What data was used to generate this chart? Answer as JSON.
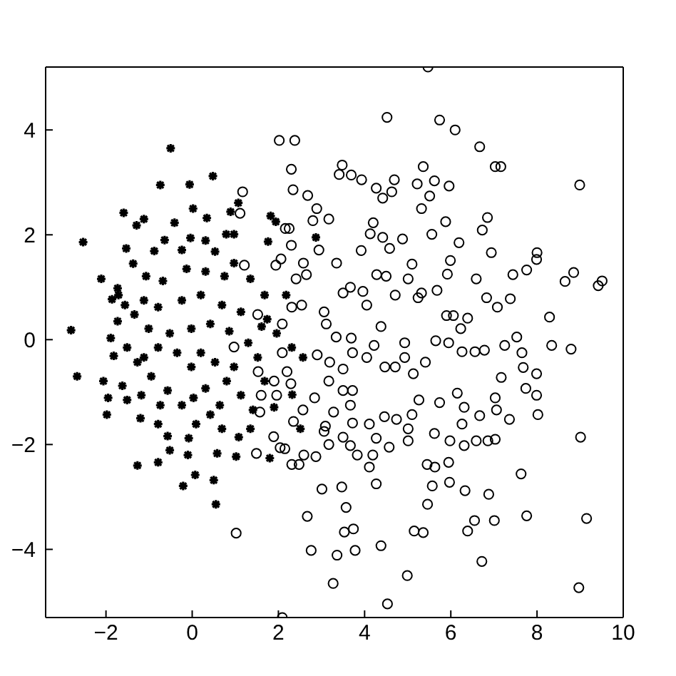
{
  "chart_data": {
    "type": "scatter",
    "xlim": [
      -3.4,
      10
    ],
    "ylim": [
      -5.3,
      5.2
    ],
    "xticks": [
      -2,
      0,
      2,
      4,
      6,
      8,
      10
    ],
    "yticks": [
      -4,
      -2,
      0,
      2,
      4
    ],
    "series": [
      {
        "color": "#000000",
        "marker": "cross",
        "x": [
          -2.53,
          -2.11,
          -1.73,
          -1.59,
          -1.29,
          -1.12,
          -1.53,
          -0.74,
          -0.5,
          -0.06,
          0.02,
          -0.41,
          0.34,
          0.48,
          0.89,
          0.97,
          0.79,
          1.07,
          1.82,
          1.94,
          1.76,
          2.87,
          -0.64,
          -0.04,
          0.31,
          -0.88,
          -1.37,
          -0.24,
          0.53,
          0.97,
          -1.07,
          -0.68,
          -0.13,
          0.31,
          0.75,
          1.35,
          -1.86,
          -1.12,
          -1.56,
          1.68,
          -2.81,
          -2.67,
          -2.06,
          -1.95,
          -1.98,
          -1.2,
          -1.73,
          -1.51,
          -1.82,
          -1.62,
          -1.51,
          -1.18,
          -0.79,
          -0.57,
          -0.79,
          -0.52,
          -1.27,
          -0.21,
          0.07,
          -0.1,
          -0.08,
          0.09,
          0.5,
          0.55,
          0.58,
          1.02,
          0.69,
          1.08,
          1.35,
          1.41,
          1.8,
          2.51,
          2.32,
          2.57,
          1.9,
          1.68,
          1.52,
          1.13,
          0.8,
          0.42,
          0.31,
          -0.24,
          -0.57,
          -0.95,
          -1.12,
          -0.79,
          -0.35,
          -0.02,
          0.53,
          0.97,
          1.3,
          0.86,
          0.42,
          -0.02,
          -0.52,
          -1.01,
          -1.34,
          -0.79,
          -0.24,
          0.2,
          0.69,
          1.13,
          1.61,
          1.74,
          1.96,
          2.18,
          2.31,
          -1.71,
          -1.89,
          -1.27,
          0.2,
          0.64,
          0.03,
          -0.74
        ],
        "values": [
          1.86,
          1.16,
          0.98,
          2.42,
          2.18,
          2.3,
          1.74,
          2.95,
          3.65,
          2.96,
          2.5,
          2.23,
          2.32,
          3.12,
          2.44,
          2.01,
          2.01,
          2.61,
          2.36,
          2.25,
          1.87,
          1.95,
          1.9,
          1.94,
          1.89,
          1.69,
          1.45,
          1.71,
          1.68,
          1.46,
          1.21,
          1.12,
          1.35,
          1.3,
          1.21,
          1.16,
          0.77,
          0.75,
          0.66,
          0.85,
          0.18,
          -0.7,
          -0.79,
          -1.11,
          -1.43,
          -1.5,
          0.35,
          -0.15,
          -0.31,
          -0.88,
          -1.15,
          -1.06,
          -1.61,
          -1.84,
          -2.34,
          -2.11,
          -2.4,
          -2.79,
          -2.58,
          -2.2,
          -1.88,
          -1.61,
          -2.68,
          -3.14,
          -2.17,
          -2.23,
          -1.7,
          -1.86,
          -1.7,
          -1.34,
          -2.26,
          -1.7,
          -1.05,
          -0.34,
          -1.29,
          -0.79,
          -0.34,
          -1.06,
          -0.79,
          -1.43,
          -0.93,
          -1.25,
          -0.97,
          -0.7,
          -0.34,
          -0.15,
          -0.25,
          -0.52,
          -0.43,
          -0.52,
          -0.06,
          0.16,
          0.3,
          0.21,
          0.12,
          0.21,
          0.48,
          0.62,
          0.75,
          0.85,
          0.66,
          0.53,
          0.25,
          0.39,
          0.12,
          0.85,
          -0.15,
          0.85,
          0.03,
          -0.43,
          -0.25,
          -1.25,
          -1.11,
          -1.25
        ]
      },
      {
        "color": "#000000",
        "marker": "circle",
        "x": [
          5.47,
          4.52,
          5.74,
          6.1,
          6.67,
          7.03,
          7.16,
          8.99,
          2.02,
          2.38,
          2.3,
          2.34,
          3.48,
          3.41,
          3.69,
          3.93,
          1.17,
          1.11,
          2.68,
          2.89,
          2.8,
          3.17,
          4.27,
          4.69,
          4.63,
          4.42,
          5.36,
          5.22,
          5.62,
          5.96,
          5.51,
          5.32,
          5.88,
          6.85,
          6.73,
          6.19,
          5.56,
          4.2,
          4.13,
          4.42,
          2.16,
          2.25,
          2.3,
          1.94,
          2.06,
          1.21,
          2.58,
          2.94,
          3.35,
          3.92,
          4.58,
          4.88,
          6.94,
          8.0,
          7.76,
          7.99,
          5.99,
          5.92,
          5.1,
          5.01,
          4.28,
          4.5,
          7.44,
          6.59,
          8.85,
          8.65,
          9.42,
          9.51,
          2.41,
          2.65,
          5.32,
          3.67,
          3.5,
          8.29,
          8.34,
          8.79,
          7.65,
          7.68,
          7.74,
          7.99,
          7.99,
          8.02,
          9.01,
          9.15,
          8.97,
          7.63,
          7.76,
          6.72,
          7.01,
          6.88,
          6.55,
          6.39,
          6.33,
          5.97,
          5.95,
          5.57,
          5.45,
          5.63,
          5.46,
          5.36,
          5.15,
          4.99,
          4.53,
          4.38,
          3.78,
          3.74,
          3.53,
          3.36,
          3.27,
          2.76,
          2.67,
          3.47,
          3.57,
          3.01,
          2.09,
          1.02,
          4.27,
          4.11,
          3.83,
          4.19,
          3.5,
          3.67,
          2.31,
          2.48,
          2.87,
          2.59,
          1.49,
          2.04,
          2.15,
          1.89,
          3.17,
          3.06,
          5.98,
          6.31,
          6.59,
          6.86,
          7.03,
          6.67,
          7.06,
          7.36,
          7.03,
          7.17,
          6.26,
          6.31,
          6.15,
          5.62,
          5.74,
          5.01,
          5.01,
          5.26,
          5.1,
          4.57,
          4.46,
          4.74,
          4.11,
          4.27,
          6.78,
          7.25,
          7.53,
          6.83,
          7.08,
          7.38,
          5.9,
          6.06,
          6.39,
          6.56,
          6.26,
          5.95,
          5.65,
          5.41,
          5.13,
          4.93,
          4.71,
          4.47,
          4.22,
          4.38,
          4.05,
          3.72,
          3.72,
          3.5,
          3.67,
          3.72,
          3.28,
          3.09,
          3.17,
          2.84,
          2.57,
          2.35,
          2.9,
          3.19,
          3.5,
          2.29,
          1.96,
          1.9,
          2.2,
          2.09,
          3.34,
          3.69,
          3.06,
          3.11,
          4.05,
          4.71,
          5.24,
          5.68,
          2.09,
          2.31,
          2.54,
          1.57,
          1.6,
          1.53,
          1.52,
          3.96,
          4.93,
          0.97,
          6.23
        ],
        "values": [
          5.2,
          4.24,
          4.19,
          4.0,
          3.68,
          3.3,
          3.3,
          2.95,
          3.8,
          3.8,
          3.25,
          2.86,
          3.33,
          3.15,
          3.14,
          3.05,
          2.82,
          2.41,
          2.75,
          2.5,
          2.27,
          2.3,
          2.89,
          3.05,
          2.82,
          2.7,
          3.3,
          2.97,
          3.03,
          2.93,
          2.74,
          2.5,
          2.25,
          2.33,
          2.09,
          1.85,
          2.01,
          2.23,
          2.02,
          1.95,
          2.12,
          2.12,
          1.8,
          1.42,
          1.54,
          1.42,
          1.46,
          1.71,
          1.46,
          1.7,
          1.74,
          1.92,
          1.66,
          1.66,
          1.33,
          1.53,
          1.51,
          1.25,
          1.44,
          1.16,
          1.24,
          1.21,
          1.24,
          1.16,
          1.28,
          1.11,
          1.03,
          1.12,
          1.16,
          1.24,
          0.89,
          1.0,
          0.89,
          0.43,
          -0.11,
          -0.18,
          -0.25,
          -0.53,
          -0.93,
          -0.65,
          -1.06,
          -1.43,
          -1.86,
          -3.41,
          -4.73,
          -2.56,
          -3.36,
          -4.23,
          -3.45,
          -2.95,
          -3.45,
          -3.65,
          -2.88,
          -2.72,
          -2.34,
          -2.79,
          -2.38,
          -2.43,
          -3.14,
          -3.68,
          -3.65,
          -4.5,
          -5.04,
          -3.93,
          -4.02,
          -3.61,
          -3.67,
          -4.11,
          -4.65,
          -4.02,
          -3.37,
          -2.81,
          -3.2,
          -2.85,
          -5.3,
          -3.69,
          -2.75,
          -2.43,
          -2.2,
          -2.2,
          -1.86,
          -2.02,
          -2.38,
          -2.38,
          -2.23,
          -2.2,
          -2.17,
          -2.06,
          -2.08,
          -1.85,
          -2.0,
          -1.75,
          -1.93,
          -2.02,
          -1.93,
          -1.93,
          -1.9,
          -1.45,
          -1.34,
          -1.52,
          -1.11,
          -0.72,
          -1.61,
          -1.29,
          -1.02,
          -1.79,
          -1.2,
          -1.93,
          -1.7,
          -1.15,
          -1.43,
          -2.05,
          -1.47,
          -1.52,
          -1.61,
          -1.88,
          -0.2,
          -0.11,
          0.05,
          0.8,
          0.62,
          0.78,
          0.46,
          0.46,
          0.41,
          -0.23,
          -0.23,
          -0.06,
          -0.02,
          -0.43,
          -0.65,
          -0.34,
          -0.52,
          -0.52,
          -0.11,
          0.25,
          -0.34,
          -0.25,
          -0.97,
          -0.97,
          -1.25,
          -1.59,
          -1.38,
          -1.65,
          -0.79,
          -1.11,
          -1.34,
          -1.56,
          -0.29,
          -0.43,
          -0.56,
          -0.84,
          -1.06,
          -0.79,
          -0.61,
          -0.25,
          0.05,
          0.03,
          0.53,
          0.3,
          0.66,
          0.85,
          0.8,
          0.94,
          0.3,
          0.62,
          0.66,
          -1.38,
          -1.06,
          -0.61,
          0.48,
          0.92,
          -0.06,
          -0.14,
          0.21
        ]
      }
    ]
  }
}
